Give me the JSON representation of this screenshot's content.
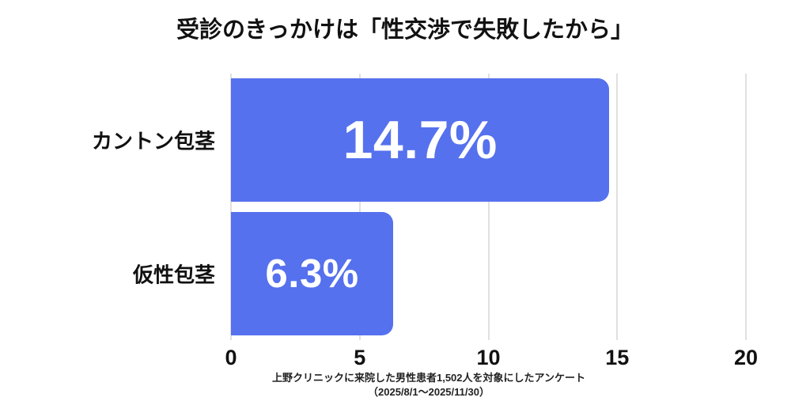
{
  "title": "受診のきっかけは「性交渉で失敗したから」",
  "footer": {
    "line1": "上野クリニックに来院した男性患者1,502人を対象にしたアンケート",
    "line2": "（2025/8/1～2025/11/30）"
  },
  "colors": {
    "bar": "#5571ee",
    "bar_label": "#ffffff",
    "gridline": "#e0e0e0",
    "text": "#111111"
  },
  "chart_data": {
    "type": "bar",
    "orientation": "horizontal",
    "title": "受診のきっかけは「性交渉で失敗したから」",
    "categories": [
      "カントン包茎",
      "仮性包茎"
    ],
    "values": [
      14.7,
      6.3
    ],
    "value_labels": [
      "14.7%",
      "6.3%"
    ],
    "xlabel": "",
    "ylabel": "",
    "xlim": [
      0,
      20
    ],
    "xticks": [
      0,
      5,
      10,
      15,
      20
    ],
    "grid": true,
    "legend": false,
    "source_note": "上野クリニックに来院した男性患者1,502人を対象にしたアンケート（2025/8/1～2025/11/30）"
  }
}
